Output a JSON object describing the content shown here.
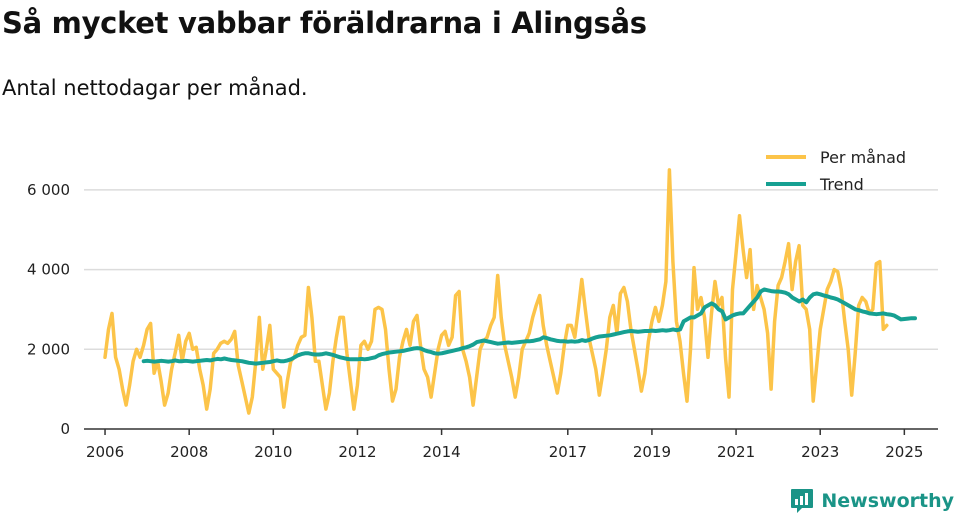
{
  "header": {
    "title": "Så mycket vabbar föräldrarna i Alingsås",
    "subtitle": "Antal nettodagar per månad."
  },
  "branding": {
    "name": "Newsworthy"
  },
  "colors": {
    "monthly": "#fcc449",
    "trend": "#16a092",
    "grid": "#dcdcdc",
    "axis": "#333333",
    "brand": "#1a9487"
  },
  "chart_data": {
    "type": "line",
    "title": "Så mycket vabbar föräldrarna i Alingsås",
    "subtitle": "Antal nettodagar per månad.",
    "xlabel": "",
    "ylabel": "",
    "ylim": [
      0,
      7000
    ],
    "xlim": [
      2005.5,
      2025.8
    ],
    "yticks": [
      0,
      2000,
      4000,
      6000
    ],
    "ytick_labels": [
      "0",
      "2 000",
      "4 000",
      "6 000"
    ],
    "xticks": [
      2006,
      2008,
      2010,
      2012,
      2014,
      2017,
      2019,
      2021,
      2023,
      2025
    ],
    "xtick_labels": [
      "2006",
      "2008",
      "2010",
      "2012",
      "2014",
      "2017",
      "2019",
      "2021",
      "2023",
      "2025"
    ],
    "grid": true,
    "legend_position": "top-right",
    "series": [
      {
        "name": "Per månad",
        "x_start": 2006.0,
        "step": 0.08333,
        "values": [
          1800,
          2500,
          2900,
          1800,
          1500,
          1000,
          600,
          1100,
          1700,
          2000,
          1800,
          2100,
          2500,
          2650,
          1400,
          1700,
          1200,
          600,
          900,
          1500,
          1900,
          2350,
          1700,
          2200,
          2400,
          2000,
          2050,
          1500,
          1100,
          500,
          1000,
          1900,
          2000,
          2150,
          2200,
          2150,
          2250,
          2450,
          1600,
          1200,
          800,
          400,
          800,
          1700,
          2800,
          1500,
          2000,
          2600,
          1500,
          1400,
          1300,
          550,
          1200,
          1700,
          1800,
          2100,
          2300,
          2350,
          3550,
          2800,
          1700,
          1700,
          1100,
          500,
          900,
          1700,
          2300,
          2800,
          2800,
          1900,
          1200,
          500,
          1100,
          2100,
          2200,
          2000,
          2200,
          3000,
          3050,
          3000,
          2500,
          1500,
          700,
          1000,
          1800,
          2200,
          2500,
          2100,
          2700,
          2850,
          2100,
          1500,
          1300,
          800,
          1400,
          2000,
          2350,
          2450,
          2100,
          2300,
          3350,
          3450,
          2000,
          1700,
          1300,
          600,
          1300,
          2000,
          2200,
          2300,
          2600,
          2800,
          3850,
          2800,
          2100,
          1700,
          1300,
          800,
          1300,
          2000,
          2200,
          2400,
          2800,
          3100,
          3350,
          2600,
          2100,
          1700,
          1300,
          900,
          1400,
          2100,
          2600,
          2600,
          2300,
          3000,
          3750,
          3000,
          2300,
          1900,
          1500,
          850,
          1400,
          2000,
          2800,
          3100,
          2400,
          3400,
          3550,
          3200,
          2500,
          2000,
          1500,
          950,
          1400,
          2200,
          2700,
          3050,
          2700,
          3100,
          3700,
          6500,
          4200,
          2700,
          2200,
          1400,
          700,
          2000,
          4050,
          3000,
          3300,
          2800,
          1800,
          2900,
          3700,
          3100,
          3300,
          1800,
          800,
          3500,
          4400,
          5350,
          4500,
          3800,
          4500,
          3000,
          3600,
          3300,
          3000,
          2400,
          1000,
          2700,
          3600,
          3800,
          4200,
          4650,
          3500,
          4200,
          4600,
          3100,
          3000,
          2500,
          700,
          1600,
          2500,
          3000,
          3500,
          3700,
          4000,
          3950,
          3500,
          2700,
          2000,
          850,
          1900,
          3100,
          3300,
          3200,
          2900,
          3000,
          4150,
          4200,
          2500,
          2600
        ]
      },
      {
        "name": "Trend",
        "x_start": 2006.92,
        "step": 0.08333,
        "values": [
          1700,
          1710,
          1700,
          1690,
          1700,
          1710,
          1700,
          1690,
          1700,
          1720,
          1700,
          1700,
          1710,
          1700,
          1690,
          1700,
          1710,
          1720,
          1730,
          1720,
          1740,
          1760,
          1750,
          1770,
          1750,
          1730,
          1720,
          1710,
          1700,
          1680,
          1660,
          1650,
          1640,
          1650,
          1660,
          1670,
          1680,
          1700,
          1720,
          1700,
          1700,
          1720,
          1750,
          1800,
          1850,
          1880,
          1900,
          1900,
          1880,
          1870,
          1870,
          1880,
          1900,
          1880,
          1860,
          1830,
          1800,
          1780,
          1760,
          1750,
          1750,
          1750,
          1760,
          1750,
          1760,
          1780,
          1800,
          1850,
          1880,
          1900,
          1920,
          1930,
          1940,
          1950,
          1960,
          1980,
          2000,
          2020,
          2030,
          2020,
          1980,
          1950,
          1930,
          1900,
          1890,
          1900,
          1920,
          1940,
          1960,
          1980,
          2000,
          2030,
          2050,
          2080,
          2120,
          2180,
          2200,
          2220,
          2200,
          2180,
          2160,
          2140,
          2150,
          2160,
          2170,
          2160,
          2170,
          2180,
          2190,
          2200,
          2200,
          2210,
          2230,
          2250,
          2300,
          2280,
          2250,
          2230,
          2210,
          2200,
          2200,
          2190,
          2200,
          2190,
          2200,
          2230,
          2210,
          2230,
          2270,
          2300,
          2320,
          2330,
          2340,
          2350,
          2370,
          2390,
          2410,
          2430,
          2450,
          2460,
          2450,
          2440,
          2450,
          2460,
          2460,
          2470,
          2460,
          2470,
          2480,
          2470,
          2480,
          2500,
          2480,
          2500,
          2700,
          2750,
          2800,
          2800,
          2850,
          2900,
          3050,
          3100,
          3150,
          3100,
          3000,
          2950,
          2750,
          2800,
          2850,
          2880,
          2900,
          2900,
          3000,
          3100,
          3200,
          3300,
          3450,
          3500,
          3480,
          3460,
          3450,
          3450,
          3440,
          3420,
          3380,
          3300,
          3250,
          3200,
          3250,
          3180,
          3300,
          3380,
          3400,
          3380,
          3350,
          3330,
          3300,
          3280,
          3250,
          3200,
          3150,
          3100,
          3050,
          3000,
          2980,
          2950,
          2930,
          2900,
          2890,
          2880,
          2890,
          2900,
          2880,
          2870,
          2850,
          2800,
          2750,
          2760,
          2770,
          2780,
          2780
        ]
      }
    ]
  }
}
